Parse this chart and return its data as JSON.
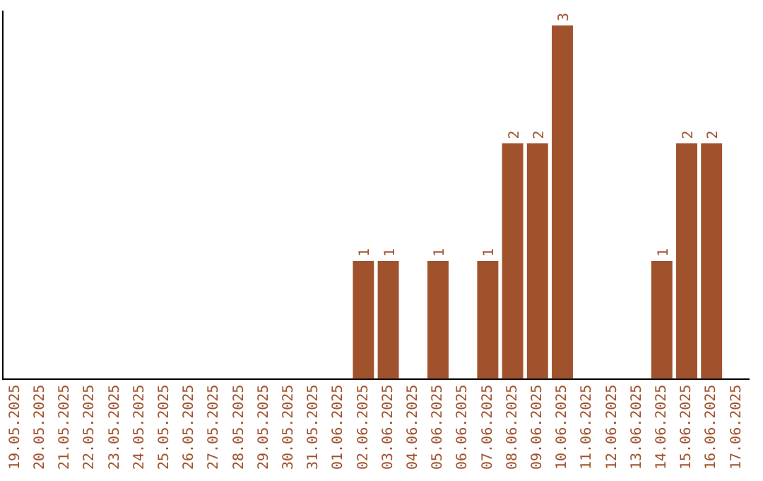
{
  "chart_data": {
    "type": "bar",
    "categories": [
      "19.05.2025",
      "20.05.2025",
      "21.05.2025",
      "22.05.2025",
      "23.05.2025",
      "24.05.2025",
      "25.05.2025",
      "26.05.2025",
      "27.05.2025",
      "28.05.2025",
      "29.05.2025",
      "30.05.2025",
      "31.05.2025",
      "01.06.2025",
      "02.06.2025",
      "03.06.2025",
      "04.06.2025",
      "05.06.2025",
      "06.06.2025",
      "07.06.2025",
      "08.06.2025",
      "09.06.2025",
      "10.06.2025",
      "11.06.2025",
      "12.06.2025",
      "13.06.2025",
      "14.06.2025",
      "15.06.2025",
      "16.06.2025",
      "17.06.2025"
    ],
    "values": [
      null,
      null,
      null,
      null,
      null,
      null,
      null,
      null,
      null,
      null,
      null,
      null,
      null,
      null,
      1,
      1,
      null,
      1,
      null,
      1,
      2,
      2,
      3,
      null,
      null,
      null,
      1,
      2,
      2,
      null
    ],
    "data_labels": true,
    "color": "#a0522d",
    "grid": false,
    "legend": false,
    "tick_labels": "x"
  }
}
